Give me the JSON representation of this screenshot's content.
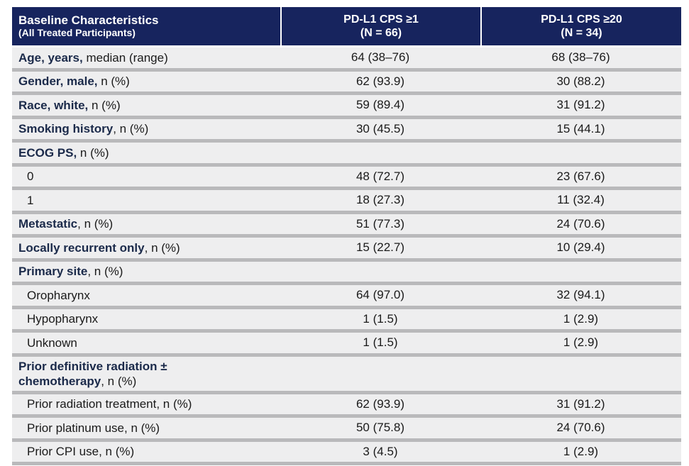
{
  "header": {
    "col0_line1": "Baseline Characteristics",
    "col0_line2": "(All Treated Participants)",
    "col1_line1": "PD-L1 CPS ≥1",
    "col1_line2": "(N = 66)",
    "col2_line1": "PD-L1 CPS ≥20",
    "col2_line2": "(N = 34)"
  },
  "rows": [
    {
      "label_bold": "Age, years,",
      "label_rest": " median (range)",
      "v1": "64 (38–76)",
      "v2": "68 (38–76)"
    },
    {
      "label_bold": "Gender, male,",
      "label_rest": " n (%)",
      "v1": "62 (93.9)",
      "v2": "30 (88.2)"
    },
    {
      "label_bold": "Race, white,",
      "label_rest": " n (%)",
      "v1": "59 (89.4)",
      "v2": "31 (91.2)"
    },
    {
      "label_bold": "Smoking history",
      "label_rest": ", n (%)",
      "v1": "30 (45.5)",
      "v2": "15 (44.1)"
    },
    {
      "label_bold": "ECOG PS,",
      "label_rest": " n (%)",
      "v1": "",
      "v2": ""
    },
    {
      "label_sub": "0",
      "v1": "48 (72.7)",
      "v2": "23 (67.6)"
    },
    {
      "label_sub": "1",
      "v1": "18 (27.3)",
      "v2": "11 (32.4)"
    },
    {
      "label_bold": "Metastatic",
      "label_rest": ", n (%)",
      "v1": "51 (77.3)",
      "v2": "24 (70.6)"
    },
    {
      "label_bold": "Locally recurrent only",
      "label_rest": ", n (%)",
      "v1": "15 (22.7)",
      "v2": "10 (29.4)"
    },
    {
      "label_bold": "Primary site",
      "label_rest": ", n (%)",
      "v1": "",
      "v2": ""
    },
    {
      "label_sub": "Oropharynx",
      "v1": "64 (97.0)",
      "v2": "32 (94.1)"
    },
    {
      "label_sub": "Hypopharynx",
      "v1": "1 (1.5)",
      "v2": "1 (2.9)"
    },
    {
      "label_sub": "Unknown",
      "v1": "1 (1.5)",
      "v2": "1 (2.9)"
    },
    {
      "label_bold_line1": "Prior definitive radiation ±",
      "label_bold_line2": "chemotherapy",
      "label_rest": ", n (%)",
      "v1": "",
      "v2": ""
    },
    {
      "label_sub": "Prior radiation treatment, n (%)",
      "v1": "62 (93.9)",
      "v2": "31 (91.2)"
    },
    {
      "label_sub": "Prior platinum use, n (%)",
      "v1": "50 (75.8)",
      "v2": "24 (70.6)"
    },
    {
      "label_sub": "Prior CPI use, n (%)",
      "v1": "3 (4.5)",
      "v2": "1 (2.9)"
    }
  ],
  "colors": {
    "header_bg": "#17245e",
    "row_bg": "#eeeeef",
    "row_separator": "#b9b9bb",
    "bold_label": "#1b2a4a"
  }
}
